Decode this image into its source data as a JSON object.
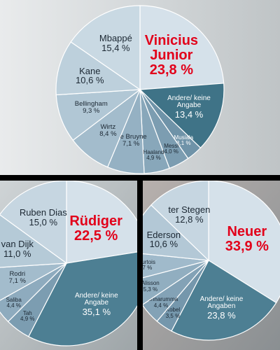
{
  "chart_data": [
    {
      "type": "pie",
      "categories": [
        "Vinicius Junior",
        "Andere/ keine Angabe",
        "Musiala",
        "Messi",
        "Haaland",
        "De Bruyne",
        "Wirtz",
        "Bellingham",
        "Kane",
        "Mbappé"
      ],
      "values": [
        23.8,
        13.4,
        3.1,
        4.0,
        4.9,
        7.1,
        8.4,
        9.3,
        10.6,
        15.4
      ],
      "value_labels": [
        "23,8 %",
        "13,4 %",
        "3,1 %",
        "4,0 %",
        "4,9 %",
        "7,1 %",
        "8,4 %",
        "9,3 %",
        "10,6 %",
        "15,4 %"
      ],
      "colors": [
        "#d5e1ea",
        "#3f7387",
        "#6f93a8",
        "#7c9db1",
        "#88a7ba",
        "#95b1c3",
        "#a3bccc",
        "#b1c7d5",
        "#bdd0dc",
        "#c9d9e3"
      ]
    },
    {
      "type": "pie",
      "categories": [
        "Rüdiger",
        "Andere/ keine Angabe",
        "Tah",
        "Saliba",
        "Rodri",
        "van Dijk",
        "Ruben Dias"
      ],
      "values": [
        22.5,
        35.1,
        4.9,
        4.4,
        7.1,
        11.0,
        15.0
      ],
      "value_labels": [
        "22,5 %",
        "35,1 %",
        "4,9 %",
        "4,4 %",
        "7,1 %",
        "11,0 %",
        "15,0 %"
      ],
      "colors": [
        "#d5e1ea",
        "#4d7f93",
        "#7c9db1",
        "#8eabbe",
        "#a3bccc",
        "#b5cad7",
        "#c6d6e1"
      ]
    },
    {
      "type": "pie",
      "categories": [
        "Neuer",
        "Andere/ keine Angaben",
        "Kobel",
        "Donnarumma",
        "Alisson",
        "Courtois",
        "Ederson",
        "ter Stegen"
      ],
      "values": [
        33.9,
        23.8,
        3.5,
        4.4,
        5.3,
        5.7,
        10.6,
        12.8
      ],
      "value_labels": [
        "33,9 %",
        "23,8 %",
        "3,5 %",
        "4,4 %",
        "5,3 %",
        "5,7 %",
        "10,6 %",
        "12,8 %"
      ],
      "colors": [
        "#d5e1ea",
        "#4d7f93",
        "#7597ac",
        "#83a2b6",
        "#91aec0",
        "#a0bacb",
        "#b3c8d6",
        "#c6d6e1"
      ]
    }
  ]
}
